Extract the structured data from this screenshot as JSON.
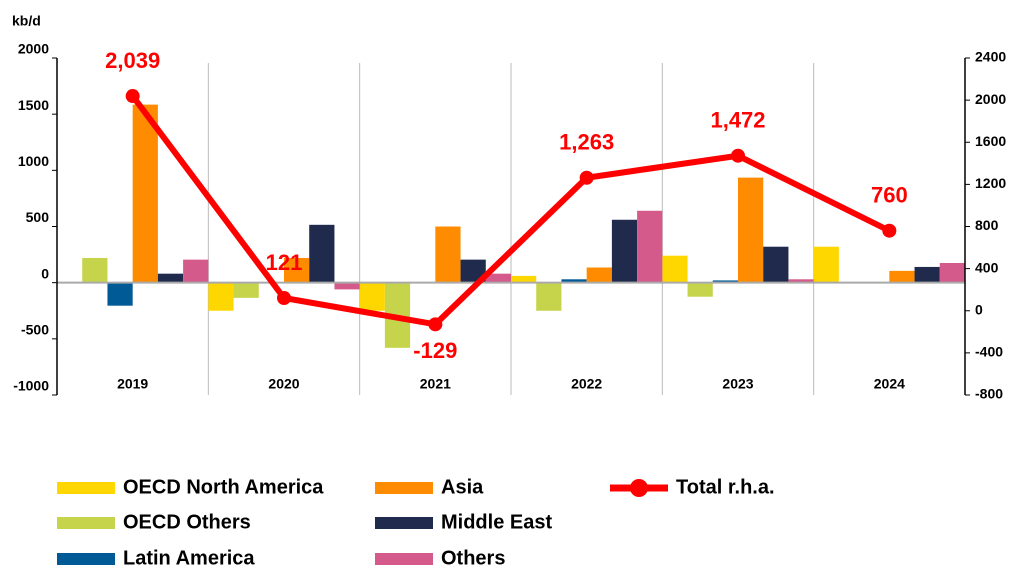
{
  "chart_data": {
    "type": "bar",
    "y_label": "kb/d",
    "categories": [
      "2019",
      "2020",
      "2021",
      "2022",
      "2023",
      "2024"
    ],
    "ylim": [
      -1000,
      2000
    ],
    "yticks": [
      -1000,
      -500,
      0,
      500,
      1000,
      1500,
      2000
    ],
    "y2lim": [
      -800,
      2400
    ],
    "y2ticks": [
      -800,
      -400,
      0,
      400,
      800,
      1200,
      1600,
      2000,
      2400
    ],
    "series": [
      {
        "name": "OECD North America",
        "color": "#ffd700",
        "values": [
          0,
          -250,
          -250,
          60,
          240,
          320
        ]
      },
      {
        "name": "OECD Others",
        "color": "#c5d44a",
        "values": [
          220,
          -135,
          -580,
          -250,
          -125,
          0
        ]
      },
      {
        "name": "Latin America",
        "color": "#005a96",
        "values": [
          -205,
          0,
          0,
          30,
          20,
          0
        ]
      },
      {
        "name": "Asia",
        "color": "#ff8c00",
        "values": [
          1585,
          220,
          500,
          135,
          935,
          105
        ]
      },
      {
        "name": "Middle East",
        "color": "#1f2a4d",
        "values": [
          80,
          515,
          205,
          560,
          320,
          140
        ]
      },
      {
        "name": "Others",
        "color": "#d45a8c",
        "values": [
          205,
          -60,
          80,
          640,
          30,
          175
        ]
      },
      {
        "name": "Total r.h.a.",
        "type": "line",
        "axis": "y2",
        "color": "#ff0000",
        "values": [
          2039,
          121,
          -129,
          1263,
          1472,
          760
        ],
        "value_labels": [
          "2,039",
          "121",
          "-129",
          "1,263",
          "1,472",
          "760"
        ]
      }
    ]
  }
}
